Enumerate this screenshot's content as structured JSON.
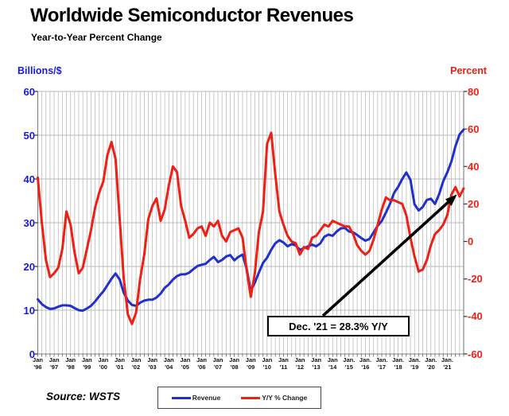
{
  "title": "Worldwide Semiconductor Revenues",
  "subtitle": "Year-to-Year Percent Change",
  "source": "Source: WSTS",
  "annotation": {
    "text": "Dec. '21 = 28.3% Y/Y"
  },
  "legend": {
    "items": [
      {
        "label": "Revenue",
        "color": "#2030cc"
      },
      {
        "label": "Y/Y % Change",
        "color": "#ee1f14"
      }
    ]
  },
  "left_axis": {
    "label": "Billions/$",
    "color": "#1a1ae0",
    "ticks": [
      60,
      50,
      40,
      30,
      20,
      10,
      0
    ],
    "min": 0,
    "max": 60
  },
  "right_axis": {
    "label": "Percent",
    "color": "#ee1f14",
    "ticks": [
      80,
      60,
      40,
      20,
      0,
      -20,
      -40,
      -60
    ],
    "min": -60,
    "max": 80
  },
  "x_axis": {
    "tick_labels": [
      {
        "month": "Jan",
        "year": "'96"
      },
      {
        "month": "Jan",
        "year": "'97"
      },
      {
        "month": "Jan",
        "year": "'98"
      },
      {
        "month": "Jan",
        "year": "'99"
      },
      {
        "month": "Jan",
        "year": "'00"
      },
      {
        "month": "Jan",
        "year": "'01"
      },
      {
        "month": "Jan",
        "year": "'02"
      },
      {
        "month": "Jan",
        "year": "'03"
      },
      {
        "month": "Jan",
        "year": "'04"
      },
      {
        "month": "Jan",
        "year": "'05"
      },
      {
        "month": "Jan",
        "year": "'06"
      },
      {
        "month": "Jan",
        "year": "'07"
      },
      {
        "month": "Jan",
        "year": "'08"
      },
      {
        "month": "Jan",
        "year": "'09"
      },
      {
        "month": "Jan",
        "year": "'10"
      },
      {
        "month": "Jan",
        "year": "'11"
      },
      {
        "month": "Jan",
        "year": "'12"
      },
      {
        "month": "Jan",
        "year": "'13"
      },
      {
        "month": "Jan",
        "year": "'14"
      },
      {
        "month": "Jan.",
        "year": "'15"
      },
      {
        "month": "Jan.",
        "year": "'16"
      },
      {
        "month": "Jan.",
        "year": "'17"
      },
      {
        "month": "Jan.",
        "year": "'18"
      },
      {
        "month": "Jan.",
        "year": "'19"
      },
      {
        "month": "Jan.",
        "year": "'20"
      },
      {
        "month": "Jan.",
        "year": "'21"
      }
    ]
  },
  "chart_data": {
    "type": "line",
    "title": "Worldwide Semiconductor Revenues",
    "subtitle": "Year-to-Year Percent Change",
    "x_range": "Jan 1996 to Dec 2021",
    "sampling": "quarterly estimates read from plot, plus final Dec 2021 point",
    "grid": {
      "vertical": "quarterly",
      "horizontal": "every 10 units of left axis"
    },
    "left_ylim": [
      0,
      60
    ],
    "right_ylim": [
      -60,
      80
    ],
    "legend_position": "bottom-center",
    "annotation": {
      "label": "Dec. '21 = 28.3% Y/Y",
      "points_to": {
        "series": "Y/Y % Change",
        "x": "Dec 2021",
        "value": 28.3
      }
    },
    "series": [
      {
        "name": "Revenue",
        "axis": "left",
        "unit": "US$ billions per month",
        "color": "#2030cc",
        "final_dec_2021": 51.3,
        "values_by_year": {
          "1996": [
            12.5,
            11.4,
            10.7,
            10.3
          ],
          "1997": [
            10.4,
            10.8,
            11.1,
            11.1
          ],
          "1998": [
            11.0,
            10.5,
            10.0,
            9.9
          ],
          "1999": [
            10.4,
            11.0,
            12.0,
            13.2
          ],
          "2000": [
            14.3,
            15.7,
            17.2,
            18.4
          ],
          "2001": [
            17.0,
            14.0,
            12.2,
            11.2
          ],
          "2002": [
            11.0,
            11.7,
            12.2,
            12.4
          ],
          "2003": [
            12.4,
            12.9,
            13.8,
            15.1
          ],
          "2004": [
            15.9,
            17.0,
            17.8,
            18.2
          ],
          "2005": [
            18.2,
            18.6,
            19.4,
            20.1
          ],
          "2006": [
            20.4,
            20.6,
            21.5,
            22.2
          ],
          "2007": [
            21.0,
            21.5,
            22.3,
            22.6
          ],
          "2008": [
            21.4,
            22.2,
            22.7,
            19.5
          ],
          "2009": [
            14.4,
            16.3,
            18.6,
            20.8
          ],
          "2010": [
            22.0,
            23.8,
            25.3,
            26.0
          ],
          "2011": [
            25.5,
            24.6,
            25.1,
            24.8
          ],
          "2012": [
            23.8,
            24.2,
            24.6,
            25.0
          ],
          "2013": [
            24.6,
            25.3,
            26.8,
            27.3
          ],
          "2014": [
            27.0,
            28.0,
            28.7,
            28.8
          ],
          "2015": [
            28.0,
            27.8,
            27.2,
            26.5
          ],
          "2016": [
            25.9,
            26.3,
            27.8,
            29.3
          ],
          "2017": [
            30.4,
            32.3,
            34.3,
            36.8
          ],
          "2018": [
            38.2,
            40.0,
            41.5,
            39.8
          ],
          "2019": [
            34.2,
            32.8,
            33.6,
            35.2
          ],
          "2020": [
            35.5,
            34.3,
            36.5,
            39.5
          ],
          "2021": [
            41.5,
            44.0,
            47.5,
            50.2
          ]
        }
      },
      {
        "name": "Y/Y % Change",
        "axis": "right",
        "unit": "percent",
        "color": "#ee1f14",
        "final_dec_2021": 28.3,
        "values_by_year": {
          "1996": [
            34,
            10,
            -10,
            -19
          ],
          "1997": [
            -17,
            -14,
            -4,
            16
          ],
          "1998": [
            9,
            -6,
            -17,
            -14
          ],
          "1999": [
            -4,
            6,
            18,
            26
          ],
          "2000": [
            32,
            46,
            53,
            44
          ],
          "2001": [
            12,
            -20,
            -39,
            -44
          ],
          "2002": [
            -38,
            -20,
            -7,
            12
          ],
          "2003": [
            19,
            23,
            11,
            17
          ],
          "2004": [
            30,
            40,
            37,
            19
          ],
          "2005": [
            11,
            2,
            4,
            7
          ],
          "2006": [
            8,
            3,
            10,
            8
          ],
          "2007": [
            11,
            3,
            0,
            5
          ],
          "2008": [
            6,
            7,
            2,
            -15
          ],
          "2009": [
            -29.5,
            -17,
            5,
            16
          ],
          "2010": [
            52,
            58,
            36,
            16
          ],
          "2011": [
            9,
            3,
            0,
            -1
          ],
          "2012": [
            -7,
            -3,
            -4,
            2
          ],
          "2013": [
            3,
            6,
            9,
            8
          ],
          "2014": [
            11,
            10,
            9,
            8
          ],
          "2015": [
            8,
            4,
            -2,
            -5
          ],
          "2016": [
            -7,
            -5,
            1,
            9
          ],
          "2017": [
            17,
            23.5,
            22,
            22
          ],
          "2018": [
            21,
            20,
            14,
            2
          ],
          "2019": [
            -8,
            -16,
            -15,
            -10
          ],
          "2020": [
            -2,
            4,
            6,
            9
          ],
          "2021": [
            14,
            25,
            29,
            24
          ]
        }
      }
    ]
  },
  "colors": {
    "grid": "#b8b8b8",
    "axis_border": "#7d7d7d",
    "arrow": "#000000"
  }
}
